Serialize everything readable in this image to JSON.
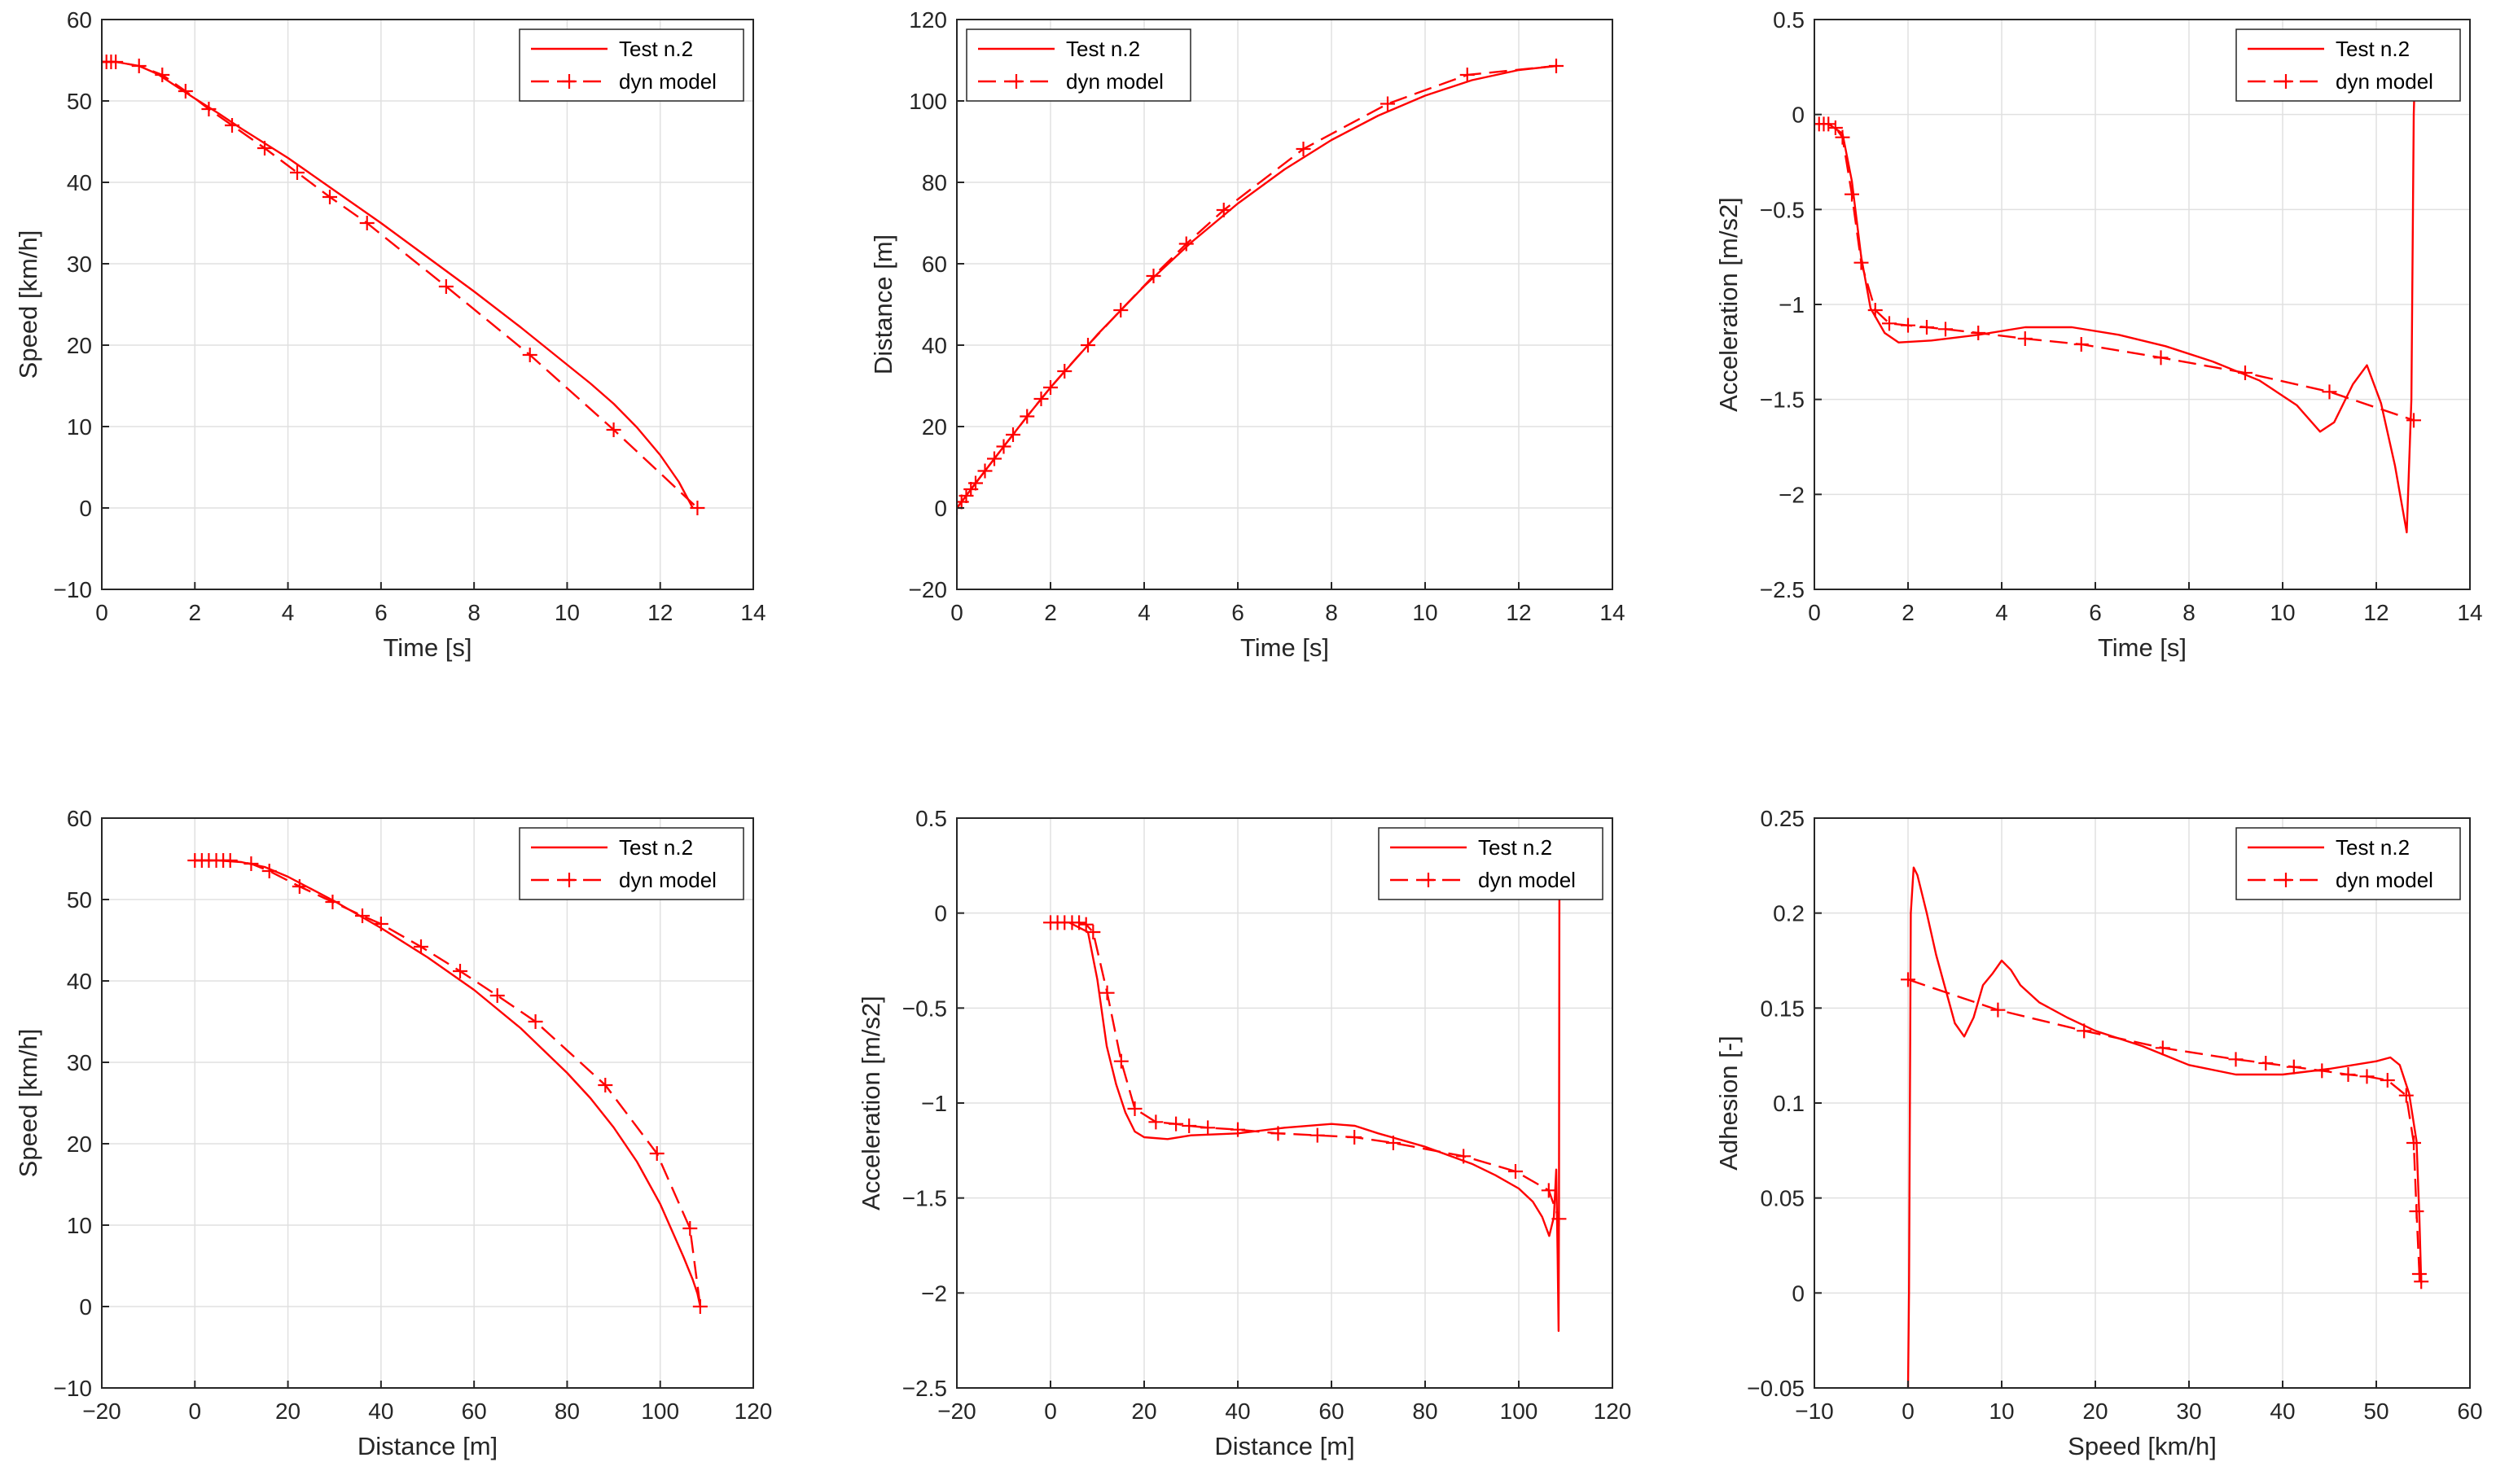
{
  "colors": {
    "series": "#ff0000",
    "axes": "#262626",
    "grid": "#e0e0e0",
    "background": "#ffffff"
  },
  "chart_data": [
    {
      "type": "line",
      "title": "",
      "xlabel": "Time [s]",
      "ylabel": "Speed [km/h]",
      "xlim": [
        0,
        14
      ],
      "ylim": [
        -10,
        60
      ],
      "xticks": [
        0,
        2,
        4,
        6,
        8,
        10,
        12,
        14
      ],
      "yticks": [
        -10,
        0,
        10,
        20,
        30,
        40,
        50,
        60
      ],
      "xtick_labels": [
        "0",
        "2",
        "4",
        "6",
        "8",
        "10",
        "12",
        "14"
      ],
      "ytick_labels": [
        "−10",
        "0",
        "10",
        "20",
        "30",
        "40",
        "50",
        "60"
      ],
      "grid": true,
      "legend_position": "top-right",
      "series": [
        {
          "name": "Test n.2",
          "style": "solid",
          "x": [
            0,
            0.3,
            0.8,
            1.2,
            1.6,
            2,
            2.5,
            3,
            3.5,
            4,
            5,
            6,
            7,
            8,
            9,
            10,
            10.5,
            11,
            11.5,
            12,
            12.4,
            12.7
          ],
          "y": [
            54.8,
            54.8,
            54.3,
            53.3,
            51.8,
            50.3,
            48.5,
            46.6,
            44.8,
            43,
            39,
            35,
            30.8,
            26.6,
            22.2,
            17.6,
            15.3,
            12.8,
            9.9,
            6.5,
            3.2,
            0
          ]
        },
        {
          "name": "dyn model",
          "style": "dashed",
          "marker": "+",
          "x": [
            0,
            0.1,
            0.2,
            0.3,
            0.8,
            1.3,
            1.8,
            2.3,
            2.8,
            3.5,
            4.2,
            4.9,
            5.7,
            7.4,
            9.2,
            11,
            12.8
          ],
          "y": [
            54.8,
            54.8,
            54.8,
            54.8,
            54.3,
            53.2,
            51.2,
            49,
            47,
            44.2,
            41.2,
            38.2,
            35,
            27.2,
            18.8,
            9.6,
            0
          ]
        }
      ]
    },
    {
      "type": "line",
      "title": "",
      "xlabel": "Time [s]",
      "ylabel": "Distance [m]",
      "xlim": [
        0,
        14
      ],
      "ylim": [
        -20,
        120
      ],
      "xticks": [
        0,
        2,
        4,
        6,
        8,
        10,
        12,
        14
      ],
      "yticks": [
        -20,
        0,
        20,
        40,
        60,
        80,
        100,
        120
      ],
      "xtick_labels": [
        "0",
        "2",
        "4",
        "6",
        "8",
        "10",
        "12",
        "14"
      ],
      "ytick_labels": [
        "−20",
        "0",
        "20",
        "40",
        "60",
        "80",
        "100",
        "120"
      ],
      "grid": true,
      "legend_position": "top-left",
      "series": [
        {
          "name": "Test n.2",
          "style": "solid",
          "x": [
            0,
            0.5,
            1,
            1.5,
            2,
            3,
            4,
            5,
            6,
            7,
            8,
            9,
            10,
            11,
            12,
            12.8
          ],
          "y": [
            0,
            7.6,
            15.1,
            22.5,
            29.6,
            42.6,
            54.5,
            65.2,
            74.8,
            83.2,
            90.4,
            96.4,
            101.3,
            105.1,
            107.6,
            108.6
          ]
        },
        {
          "name": "dyn model",
          "style": "dashed",
          "marker": "+",
          "x": [
            0,
            0.1,
            0.2,
            0.3,
            0.4,
            0.6,
            0.8,
            1.0,
            1.2,
            1.5,
            1.8,
            2.0,
            2.3,
            2.8,
            3.5,
            4.2,
            4.9,
            5.7,
            7.4,
            9.2,
            10.9,
            12.8
          ],
          "y": [
            0,
            1.5,
            3,
            4.6,
            6.1,
            9.1,
            12.1,
            15.1,
            18,
            22.5,
            26.8,
            29.6,
            33.6,
            40,
            48.6,
            57,
            64.9,
            73.2,
            88.2,
            99.3,
            106.4,
            108.6
          ]
        }
      ]
    },
    {
      "type": "line",
      "title": "",
      "xlabel": "Time [s]",
      "ylabel": "Acceleration [m/s2]",
      "xlim": [
        0,
        14
      ],
      "ylim": [
        -2.5,
        0.5
      ],
      "xticks": [
        0,
        2,
        4,
        6,
        8,
        10,
        12,
        14
      ],
      "yticks": [
        -2.5,
        -2,
        -1.5,
        -1,
        -0.5,
        0,
        0.5
      ],
      "xtick_labels": [
        "0",
        "2",
        "4",
        "6",
        "8",
        "10",
        "12",
        "14"
      ],
      "ytick_labels": [
        "−2.5",
        "−2",
        "−1.5",
        "−1",
        "−0.5",
        "0",
        "0.5"
      ],
      "grid": true,
      "legend_position": "top-right",
      "series": [
        {
          "name": "Test n.2",
          "style": "solid",
          "x": [
            0,
            0.3,
            0.6,
            0.8,
            1.0,
            1.2,
            1.5,
            1.8,
            2.5,
            3.5,
            4.5,
            5.5,
            6.5,
            7.5,
            8.5,
            9.5,
            10.3,
            10.8,
            11.1,
            11.5,
            11.8,
            12.1,
            12.4,
            12.65,
            12.75,
            12.8,
            12.85
          ],
          "y": [
            -0.05,
            -0.05,
            -0.1,
            -0.35,
            -0.75,
            -1.02,
            -1.15,
            -1.2,
            -1.19,
            -1.16,
            -1.12,
            -1.12,
            -1.16,
            -1.22,
            -1.3,
            -1.4,
            -1.53,
            -1.67,
            -1.62,
            -1.42,
            -1.32,
            -1.52,
            -1.85,
            -2.2,
            -1.5,
            0,
            0.45
          ]
        },
        {
          "name": "dyn model",
          "style": "dashed",
          "marker": "+",
          "x": [
            0,
            0.1,
            0.2,
            0.3,
            0.45,
            0.6,
            0.8,
            1.0,
            1.3,
            1.6,
            2.0,
            2.4,
            2.8,
            3.5,
            4.5,
            5.7,
            7.4,
            9.2,
            11,
            12.8
          ],
          "y": [
            -0.05,
            -0.05,
            -0.05,
            -0.05,
            -0.07,
            -0.12,
            -0.42,
            -0.78,
            -1.03,
            -1.1,
            -1.11,
            -1.12,
            -1.13,
            -1.15,
            -1.18,
            -1.21,
            -1.28,
            -1.36,
            -1.46,
            -1.61
          ]
        }
      ]
    },
    {
      "type": "line",
      "title": "",
      "xlabel": "Distance [m]",
      "ylabel": "Speed [km/h]",
      "xlim": [
        -20,
        120
      ],
      "ylim": [
        -10,
        60
      ],
      "xticks": [
        -20,
        0,
        20,
        40,
        60,
        80,
        100,
        120
      ],
      "yticks": [
        -10,
        0,
        10,
        20,
        30,
        40,
        50,
        60
      ],
      "xtick_labels": [
        "−20",
        "0",
        "20",
        "40",
        "60",
        "80",
        "100",
        "120"
      ],
      "ytick_labels": [
        "−10",
        "0",
        "10",
        "20",
        "30",
        "40",
        "50",
        "60"
      ],
      "grid": true,
      "legend_position": "top-right",
      "series": [
        {
          "name": "Test n.2",
          "style": "solid",
          "x": [
            0,
            5,
            10,
            15,
            20,
            30,
            40,
            50,
            60,
            70,
            80,
            85,
            90,
            95,
            100,
            103,
            105,
            107,
            108,
            108.6
          ],
          "y": [
            54.8,
            54.8,
            54.6,
            54,
            52.8,
            49.8,
            46.5,
            42.9,
            38.9,
            34.2,
            28.7,
            25.6,
            22,
            17.8,
            12.6,
            8.7,
            6.1,
            3.3,
            1.6,
            0
          ]
        },
        {
          "name": "dyn model",
          "style": "dashed",
          "marker": "+",
          "x": [
            0,
            1.5,
            3,
            4.6,
            6.1,
            7.6,
            12.1,
            16,
            22.5,
            29.6,
            36,
            40,
            48.6,
            57,
            65,
            73.2,
            88.2,
            99.3,
            106.4,
            108.6
          ],
          "y": [
            54.8,
            54.8,
            54.8,
            54.8,
            54.8,
            54.8,
            54.4,
            53.5,
            51.6,
            49.7,
            48,
            47,
            44.2,
            41.2,
            38.2,
            35,
            27.2,
            18.8,
            9.6,
            0
          ]
        }
      ]
    },
    {
      "type": "line",
      "title": "",
      "xlabel": "Distance [m]",
      "ylabel": "Acceleration [m/s2]",
      "xlim": [
        -20,
        120
      ],
      "ylim": [
        -2.5,
        0.5
      ],
      "xticks": [
        -20,
        0,
        20,
        40,
        60,
        80,
        100,
        120
      ],
      "yticks": [
        -2.5,
        -2,
        -1.5,
        -1,
        -0.5,
        0,
        0.5
      ],
      "xtick_labels": [
        "−20",
        "0",
        "20",
        "40",
        "60",
        "80",
        "100",
        "120"
      ],
      "ytick_labels": [
        "−2.5",
        "−2",
        "−1.5",
        "−1",
        "−0.5",
        "0",
        "0.5"
      ],
      "grid": true,
      "legend_position": "top-right",
      "series": [
        {
          "name": "Test n.2",
          "style": "solid",
          "x": [
            0,
            4,
            8,
            10,
            12,
            14,
            16,
            18,
            20,
            25,
            30,
            40,
            50,
            60,
            65,
            70,
            80,
            90,
            95,
            100,
            103,
            105,
            106.5,
            107.5,
            108,
            108.3,
            108.5,
            108.6,
            108.7
          ],
          "y": [
            -0.05,
            -0.05,
            -0.1,
            -0.35,
            -0.7,
            -0.9,
            -1.05,
            -1.15,
            -1.18,
            -1.19,
            -1.17,
            -1.16,
            -1.13,
            -1.11,
            -1.12,
            -1.16,
            -1.23,
            -1.32,
            -1.38,
            -1.45,
            -1.52,
            -1.6,
            -1.7,
            -1.6,
            -1.35,
            -1.8,
            -2.2,
            -1.5,
            0.45
          ]
        },
        {
          "name": "dyn model",
          "style": "dashed",
          "marker": "+",
          "x": [
            0,
            1.5,
            3,
            4.6,
            6.1,
            7.6,
            9.1,
            12.1,
            15.1,
            18,
            22.5,
            26.8,
            29.6,
            33.6,
            40,
            48.6,
            57,
            64.9,
            73.2,
            88.2,
            99.3,
            106.4,
            108.6
          ],
          "y": [
            -0.05,
            -0.05,
            -0.05,
            -0.05,
            -0.05,
            -0.06,
            -0.1,
            -0.42,
            -0.78,
            -1.03,
            -1.1,
            -1.11,
            -1.12,
            -1.13,
            -1.14,
            -1.16,
            -1.17,
            -1.18,
            -1.21,
            -1.28,
            -1.36,
            -1.46,
            -1.61
          ]
        }
      ]
    },
    {
      "type": "line",
      "title": "",
      "xlabel": "Speed [km/h]",
      "ylabel": "Adhesion [-]",
      "xlim": [
        -10,
        60
      ],
      "ylim": [
        -0.05,
        0.25
      ],
      "xticks": [
        -10,
        0,
        10,
        20,
        30,
        40,
        50,
        60
      ],
      "yticks": [
        -0.05,
        0,
        0.05,
        0.1,
        0.15,
        0.2,
        0.25
      ],
      "xtick_labels": [
        "−10",
        "0",
        "10",
        "20",
        "30",
        "40",
        "50",
        "60"
      ],
      "ytick_labels": [
        "−0.05",
        "0",
        "0.05",
        "0.1",
        "0.15",
        "0.2",
        "0.25"
      ],
      "grid": true,
      "legend_position": "top-right",
      "series": [
        {
          "name": "Test n.2",
          "style": "solid",
          "x": [
            0,
            0.1,
            0.3,
            0.6,
            1,
            2,
            3,
            4,
            5,
            6,
            7,
            8,
            9,
            10,
            11,
            12,
            14,
            17,
            20,
            25,
            30,
            35,
            40,
            45,
            50,
            51.5,
            52.5,
            53.5,
            54.3,
            54.6,
            54.8
          ],
          "y": [
            -0.05,
            0,
            0.2,
            0.224,
            0.22,
            0.2,
            0.178,
            0.16,
            0.142,
            0.135,
            0.145,
            0.162,
            0.168,
            0.175,
            0.17,
            0.162,
            0.153,
            0.145,
            0.138,
            0.13,
            0.12,
            0.115,
            0.115,
            0.118,
            0.122,
            0.124,
            0.12,
            0.105,
            0.08,
            0.04,
            0.005
          ]
        },
        {
          "name": "dyn model",
          "style": "dashed",
          "marker": "+",
          "x": [
            0,
            9.6,
            18.8,
            27.2,
            35,
            38.2,
            41.2,
            44.2,
            47,
            49,
            51.2,
            53.2,
            54,
            54.3,
            54.6,
            54.8
          ],
          "y": [
            0.165,
            0.149,
            0.138,
            0.129,
            0.123,
            0.121,
            0.119,
            0.117,
            0.115,
            0.114,
            0.112,
            0.104,
            0.079,
            0.043,
            0.01,
            0.006
          ]
        }
      ]
    }
  ]
}
